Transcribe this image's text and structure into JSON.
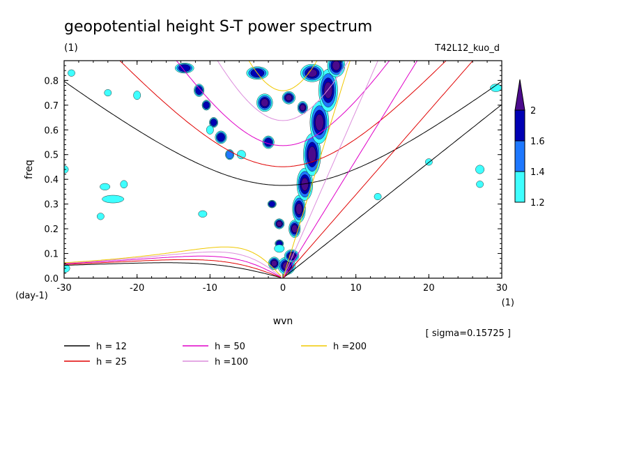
{
  "chart_data": {
    "type": "contour",
    "title": "geopotential height S-T power spectrum",
    "subtitle_left": "(1)",
    "subtitle_right": "T42L12_kuo_d",
    "xlabel": "wvn",
    "ylabel": "freq",
    "x_unit": "(1)",
    "y_unit": "(day-1)",
    "xlim": [
      -30,
      30
    ],
    "ylim": [
      0,
      0.88
    ],
    "x_ticks": [
      -30,
      -20,
      -10,
      0,
      10,
      20,
      30
    ],
    "y_ticks": [
      0.0,
      0.1,
      0.2,
      0.3,
      0.4,
      0.5,
      0.6,
      0.7,
      0.8
    ],
    "x_tick_labels": [
      "-30",
      "-20",
      "-10",
      "0",
      "10",
      "20",
      "30"
    ],
    "y_tick_labels": [
      "0.0",
      "0.1",
      "0.2",
      "0.3",
      "0.4",
      "0.5",
      "0.6",
      "0.7",
      "0.8"
    ],
    "sigma_note": "[ sigma=0.15725 ]",
    "colorbar": {
      "levels": [
        1.2,
        1.4,
        1.6,
        2.0
      ],
      "labels": [
        "1.2",
        "1.4",
        "1.6",
        "2"
      ],
      "colors": [
        "#3fffff",
        "#1e78ff",
        "#0000b4",
        "#4b0a8c"
      ]
    },
    "dispersion_curves": [
      {
        "label": "h = 12",
        "h": 12,
        "color": "#000000"
      },
      {
        "label": "h = 25",
        "h": 25,
        "color": "#e00000"
      },
      {
        "label": "h = 50",
        "h": 50,
        "color": "#e000c8"
      },
      {
        "label": "h =100",
        "h": 100,
        "color": "#dc8cdc"
      },
      {
        "label": "h =200",
        "h": 200,
        "color": "#f0c800"
      }
    ],
    "spectral_blobs": [
      {
        "x": 0.5,
        "y": 0.05,
        "level": 2.0,
        "rx": 1.0,
        "ry": 0.03
      },
      {
        "x": 1.2,
        "y": 0.09,
        "level": 2.0,
        "rx": 0.8,
        "ry": 0.02
      },
      {
        "x": -0.5,
        "y": 0.14,
        "level": 1.6,
        "rx": 0.4,
        "ry": 0.01
      },
      {
        "x": 1.6,
        "y": 0.2,
        "level": 2.0,
        "rx": 0.6,
        "ry": 0.03
      },
      {
        "x": 2.2,
        "y": 0.28,
        "level": 2.0,
        "rx": 0.7,
        "ry": 0.05
      },
      {
        "x": 3.0,
        "y": 0.38,
        "level": 2.0,
        "rx": 0.9,
        "ry": 0.06
      },
      {
        "x": 4.0,
        "y": 0.5,
        "level": 2.0,
        "rx": 1.0,
        "ry": 0.08
      },
      {
        "x": 5.0,
        "y": 0.63,
        "level": 2.0,
        "rx": 1.1,
        "ry": 0.08
      },
      {
        "x": 6.2,
        "y": 0.76,
        "level": 2.0,
        "rx": 1.1,
        "ry": 0.08
      },
      {
        "x": 7.3,
        "y": 0.86,
        "level": 2.0,
        "rx": 1.0,
        "ry": 0.04
      },
      {
        "x": 0.8,
        "y": 0.73,
        "level": 2.0,
        "rx": 0.7,
        "ry": 0.02
      },
      {
        "x": 2.7,
        "y": 0.69,
        "level": 2.0,
        "rx": 0.5,
        "ry": 0.02
      },
      {
        "x": -2.5,
        "y": 0.71,
        "level": 2.0,
        "rx": 0.9,
        "ry": 0.03
      },
      {
        "x": -3.5,
        "y": 0.83,
        "level": 1.6,
        "rx": 1.3,
        "ry": 0.02
      },
      {
        "x": 4.0,
        "y": 0.83,
        "level": 2.0,
        "rx": 1.4,
        "ry": 0.03
      },
      {
        "x": -2.0,
        "y": 0.55,
        "level": 1.6,
        "rx": 0.6,
        "ry": 0.02
      },
      {
        "x": -1.5,
        "y": 0.3,
        "level": 1.6,
        "rx": 0.4,
        "ry": 0.01
      },
      {
        "x": -0.5,
        "y": 0.22,
        "level": 2.0,
        "rx": 0.5,
        "ry": 0.015
      },
      {
        "x": -1.2,
        "y": 0.06,
        "level": 2.0,
        "rx": 0.6,
        "ry": 0.02
      },
      {
        "x": -13.5,
        "y": 0.85,
        "level": 1.6,
        "rx": 1.1,
        "ry": 0.015
      },
      {
        "x": -11.5,
        "y": 0.76,
        "level": 1.6,
        "rx": 0.5,
        "ry": 0.02
      },
      {
        "x": -10.5,
        "y": 0.7,
        "level": 1.6,
        "rx": 0.4,
        "ry": 0.015
      },
      {
        "x": -9.5,
        "y": 0.63,
        "level": 1.6,
        "rx": 0.4,
        "ry": 0.015
      },
      {
        "x": -8.5,
        "y": 0.57,
        "level": 1.6,
        "rx": 0.6,
        "ry": 0.02
      },
      {
        "x": -7.3,
        "y": 0.5,
        "level": 1.4,
        "rx": 0.4,
        "ry": 0.015
      },
      {
        "x": -5.7,
        "y": 0.5,
        "level": 1.2,
        "rx": 0.4,
        "ry": 0.012
      },
      {
        "x": -10.0,
        "y": 0.6,
        "level": 1.2,
        "rx": 0.3,
        "ry": 0.012
      },
      {
        "x": -20.0,
        "y": 0.74,
        "level": 1.2,
        "rx": 0.3,
        "ry": 0.012
      },
      {
        "x": -23.3,
        "y": 0.32,
        "level": 1.2,
        "rx": 1.3,
        "ry": 0.01
      },
      {
        "x": -24.4,
        "y": 0.37,
        "level": 1.2,
        "rx": 0.5,
        "ry": 0.008
      },
      {
        "x": -21.8,
        "y": 0.38,
        "level": 1.2,
        "rx": 0.3,
        "ry": 0.01
      },
      {
        "x": -25.0,
        "y": 0.25,
        "level": 1.2,
        "rx": 0.3,
        "ry": 0.008
      },
      {
        "x": -30.0,
        "y": 0.44,
        "level": 1.2,
        "rx": 0.4,
        "ry": 0.01
      },
      {
        "x": -30.0,
        "y": 0.04,
        "level": 1.2,
        "rx": 0.6,
        "ry": 0.012
      },
      {
        "x": -29.0,
        "y": 0.83,
        "level": 1.2,
        "rx": 0.3,
        "ry": 0.008
      },
      {
        "x": -24.0,
        "y": 0.75,
        "level": 1.2,
        "rx": 0.3,
        "ry": 0.008
      },
      {
        "x": -11.0,
        "y": 0.26,
        "level": 1.2,
        "rx": 0.4,
        "ry": 0.008
      },
      {
        "x": -0.5,
        "y": 0.12,
        "level": 1.2,
        "rx": 0.5,
        "ry": 0.01
      },
      {
        "x": 27.0,
        "y": 0.44,
        "level": 1.2,
        "rx": 0.4,
        "ry": 0.012
      },
      {
        "x": 29.2,
        "y": 0.77,
        "level": 1.2,
        "rx": 0.6,
        "ry": 0.01
      },
      {
        "x": 27.0,
        "y": 0.38,
        "level": 1.2,
        "rx": 0.3,
        "ry": 0.008
      },
      {
        "x": 13.0,
        "y": 0.33,
        "level": 1.2,
        "rx": 0.3,
        "ry": 0.008
      },
      {
        "x": 20.0,
        "y": 0.47,
        "level": 1.2,
        "rx": 0.3,
        "ry": 0.008
      }
    ]
  }
}
